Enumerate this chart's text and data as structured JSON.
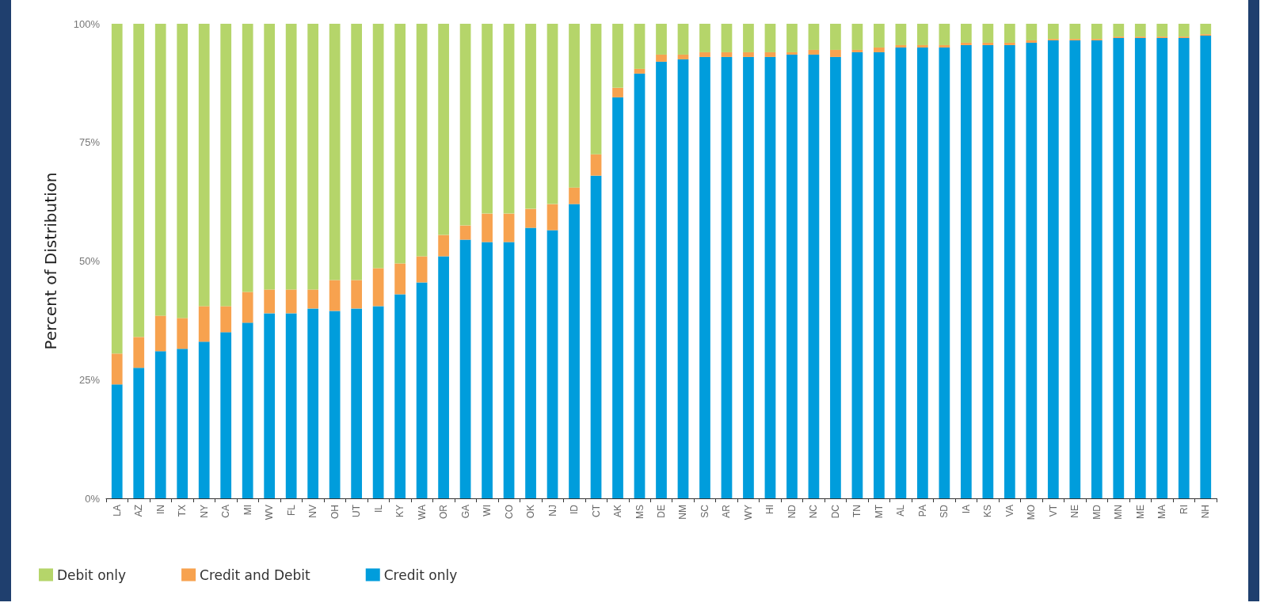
{
  "chart_data": {
    "type": "bar",
    "stacked": true,
    "ylabel": "Percent of Distribution",
    "categories": [
      "LA",
      "AZ",
      "IN",
      "TX",
      "NY",
      "CA",
      "MI",
      "WV",
      "FL",
      "NV",
      "OH",
      "UT",
      "IL",
      "KY",
      "WA",
      "OR",
      "GA",
      "WI",
      "CO",
      "OK",
      "NJ",
      "ID",
      "CT",
      "AK",
      "MS",
      "DE",
      "NM",
      "SC",
      "AR",
      "WY",
      "HI",
      "ND",
      "NC",
      "DC",
      "TN",
      "MT",
      "AL",
      "PA",
      "SD",
      "IA",
      "KS",
      "VA",
      "MO",
      "VT",
      "NE",
      "MD",
      "MN",
      "ME",
      "MA",
      "RI",
      "NH"
    ],
    "series": [
      {
        "name": "Credit only",
        "color": "#009ddc",
        "values": [
          24,
          27.5,
          31,
          31.5,
          33,
          35,
          37,
          39,
          39,
          40,
          39.5,
          40,
          40.5,
          43,
          45.5,
          51,
          54.5,
          54,
          54,
          57,
          56.5,
          62,
          68,
          84.5,
          89.5,
          92,
          92.5,
          93,
          93,
          93,
          93,
          93.5,
          93.5,
          93,
          94,
          94,
          95,
          95,
          95,
          95.5,
          95.5,
          95.5,
          96,
          96.5,
          96.5,
          96.5,
          97,
          97,
          97,
          97,
          97.5
        ]
      },
      {
        "name": "Credit and Debit",
        "color": "#f7a24f",
        "values": [
          6.5,
          6.5,
          7.5,
          6.5,
          7.5,
          5.5,
          6.5,
          5,
          5,
          4,
          6.5,
          6,
          8,
          6.5,
          5.5,
          4.5,
          3,
          6,
          6,
          4,
          5.5,
          3.5,
          4.5,
          2,
          1,
          1.5,
          1,
          1,
          1,
          1,
          1,
          0.5,
          1,
          1.5,
          0.5,
          1,
          0.5,
          0.5,
          0.5,
          0.5,
          0.5,
          0.5,
          0.5,
          0.3,
          0.3,
          0.3,
          0.3,
          0.3,
          0.3,
          0.3,
          0.3
        ]
      },
      {
        "name": "Debit only",
        "color": "#b5d56a",
        "values": [
          69.5,
          66,
          61.5,
          62,
          59.5,
          59.5,
          56.5,
          56,
          56,
          56,
          54,
          54,
          51.5,
          50.5,
          49,
          44.5,
          42.5,
          40,
          40,
          39,
          38,
          34.5,
          27.5,
          13.5,
          9.5,
          6.5,
          6.5,
          6,
          6,
          6,
          6,
          6,
          5.5,
          5.5,
          5.5,
          5,
          4.5,
          4.5,
          4.5,
          4,
          4,
          4,
          3.5,
          3.2,
          3.2,
          3.2,
          2.7,
          2.7,
          2.7,
          2.7,
          2.2
        ]
      }
    ],
    "ylim": [
      0,
      100
    ],
    "yticks": [
      {
        "value": 0,
        "label": "0%"
      },
      {
        "value": 25,
        "label": "25%"
      },
      {
        "value": 50,
        "label": "50%"
      },
      {
        "value": 75,
        "label": "75%"
      },
      {
        "value": 100,
        "label": "100%"
      }
    ],
    "grid": false,
    "legend": "bottom left"
  }
}
